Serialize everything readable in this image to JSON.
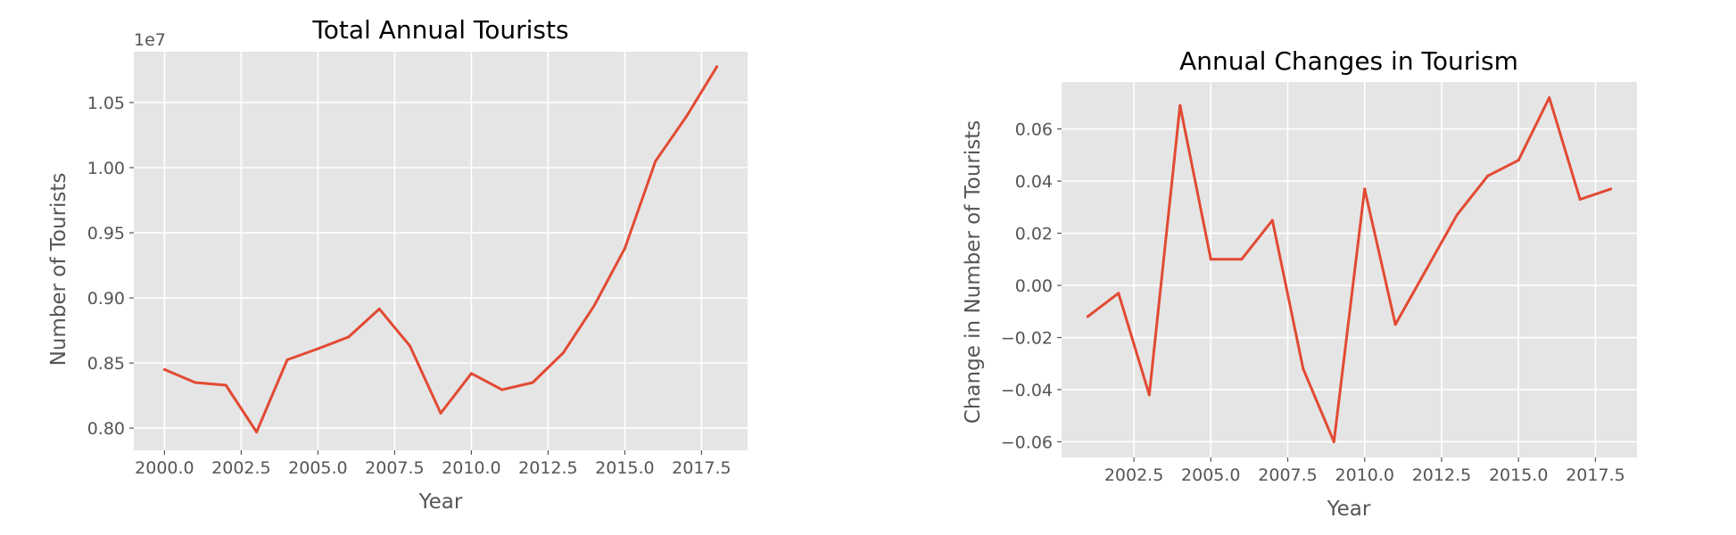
{
  "chart_data": [
    {
      "type": "line",
      "title": "Total Annual Tourists",
      "xlabel": "Year",
      "ylabel": "Number of Tourists",
      "y_offset_label": "1e7",
      "x": [
        2000,
        2001,
        2002,
        2003,
        2004,
        2005,
        2006,
        2007,
        2008,
        2009,
        2010,
        2011,
        2012,
        2013,
        2014,
        2015,
        2016,
        2017,
        2018
      ],
      "series": [
        {
          "values": [
            8450000,
            8350000,
            8330000,
            7970000,
            8525000,
            8610000,
            8700000,
            8915000,
            8630000,
            8115000,
            8420000,
            8295000,
            8350000,
            8580000,
            8940000,
            9380000,
            10050000,
            10390000,
            10775000
          ]
        }
      ],
      "xlim": [
        1999.0,
        2019.0
      ],
      "ylim": [
        7830000,
        10890000
      ],
      "xticks": [
        2000.0,
        2002.5,
        2005.0,
        2007.5,
        2010.0,
        2012.5,
        2015.0,
        2017.5
      ],
      "xtick_labels": [
        "2000.0",
        "2002.5",
        "2005.0",
        "2007.5",
        "2010.0",
        "2012.5",
        "2015.0",
        "2017.5"
      ],
      "yticks": [
        8000000,
        8500000,
        9000000,
        9500000,
        10000000,
        10500000
      ],
      "ytick_labels": [
        "0.80",
        "0.85",
        "0.90",
        "0.95",
        "1.00",
        "1.05"
      ],
      "grid": true,
      "line_color": "#E24A33",
      "background_color": "#E5E5E5"
    },
    {
      "type": "line",
      "title": "Annual Changes in Tourism",
      "xlabel": "Year",
      "ylabel": "Change in Number of Tourists",
      "x": [
        2001,
        2002,
        2003,
        2004,
        2005,
        2006,
        2007,
        2008,
        2009,
        2010,
        2011,
        2012,
        2013,
        2014,
        2015,
        2016,
        2017,
        2018
      ],
      "series": [
        {
          "values": [
            -0.012,
            -0.003,
            -0.042,
            0.069,
            0.01,
            0.01,
            0.025,
            -0.032,
            -0.06,
            0.037,
            -0.015,
            0.006,
            0.027,
            0.042,
            0.048,
            0.072,
            0.033,
            0.037
          ]
        }
      ],
      "xlim": [
        2000.15,
        2018.85
      ],
      "ylim": [
        -0.066,
        0.078
      ],
      "xticks": [
        2002.5,
        2005.0,
        2007.5,
        2010.0,
        2012.5,
        2015.0,
        2017.5
      ],
      "xtick_labels": [
        "2002.5",
        "2005.0",
        "2007.5",
        "2010.0",
        "2012.5",
        "2015.0",
        "2017.5"
      ],
      "yticks": [
        -0.06,
        -0.04,
        -0.02,
        0.0,
        0.02,
        0.04,
        0.06
      ],
      "ytick_labels": [
        "−0.06",
        "−0.04",
        "−0.02",
        "0.00",
        "0.02",
        "0.04",
        "0.06"
      ],
      "grid": true,
      "line_color": "#E24A33",
      "background_color": "#E5E5E5"
    }
  ]
}
